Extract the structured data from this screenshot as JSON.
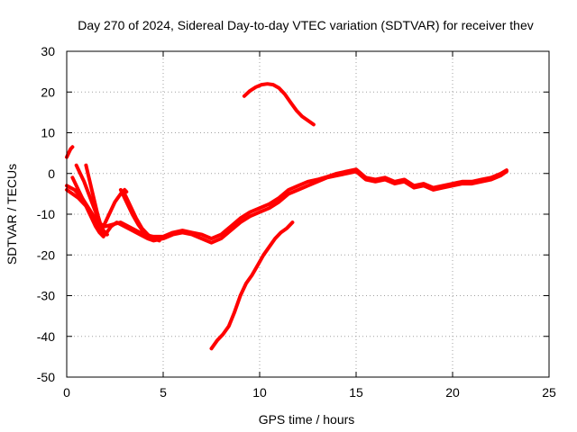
{
  "chart_data": {
    "type": "line",
    "title": "Day 270 of 2024, Sidereal Day-to-day VTEC variation (SDTVAR) for receiver thev",
    "xlabel": "GPS time / hours",
    "ylabel": "SDTVAR / TECUs",
    "xlim": [
      0,
      25
    ],
    "ylim": [
      -50,
      30
    ],
    "xticks": [
      0,
      5,
      10,
      15,
      20,
      25
    ],
    "yticks": [
      -50,
      -40,
      -30,
      -20,
      -10,
      0,
      10,
      20,
      30
    ],
    "grid": true,
    "series_color": "#ff0000",
    "series": [
      {
        "name": "track-main",
        "x": [
          0.0,
          0.3,
          0.6,
          1.0,
          1.4,
          1.7,
          2.0,
          2.3,
          2.6,
          3.0,
          3.4,
          3.8,
          4.2,
          4.5,
          5.0,
          5.5,
          6.0,
          6.5,
          7.0,
          7.5,
          8.0,
          8.5,
          9.0,
          9.5,
          10.0,
          10.5,
          11.0,
          11.5,
          12.0,
          12.5,
          13.0,
          13.5,
          14.0,
          14.5,
          15.0,
          15.5,
          16.0,
          16.5,
          17.0,
          17.5,
          18.0,
          18.5,
          19.0,
          19.5,
          20.0,
          20.5,
          21.0,
          21.5,
          22.0,
          22.5,
          22.8
        ],
        "y": [
          -4,
          -5,
          -6,
          -8,
          -11,
          -14,
          -15,
          -13,
          -12,
          -13,
          -14,
          -15,
          -16,
          -16.5,
          -16,
          -15,
          -14.5,
          -15,
          -16,
          -17,
          -16,
          -14,
          -12,
          -10.5,
          -9.5,
          -8.5,
          -7,
          -5,
          -4,
          -3,
          -2,
          -1,
          -0.5,
          0,
          0.5,
          -1.5,
          -2,
          -1.5,
          -2.5,
          -2,
          -3.5,
          -3,
          -4,
          -3.5,
          -3,
          -2.5,
          -2.5,
          -2,
          -1.5,
          -0.5,
          0.5
        ]
      },
      {
        "name": "track-main-parallel",
        "x": [
          0.0,
          0.4,
          0.8,
          1.2,
          1.6,
          2.0,
          2.4,
          2.8,
          3.2,
          3.6,
          4.0,
          4.5,
          5.0,
          5.5,
          6.0,
          6.5,
          7.0,
          7.5,
          8.0,
          8.5,
          9.0,
          9.5,
          10.0,
          10.5,
          11.0,
          11.5,
          12.0,
          12.5,
          13.0,
          13.5,
          14.0,
          14.5,
          15.0,
          15.5,
          16.0,
          16.5,
          17.0,
          17.5,
          18.0,
          18.5,
          19.0,
          19.5,
          20.0,
          20.5,
          21.0,
          21.5,
          22.0,
          22.5,
          22.8
        ],
        "y": [
          -3,
          -4,
          -6,
          -9,
          -12,
          -13,
          -12.5,
          -12,
          -13,
          -14,
          -15,
          -15.5,
          -15.5,
          -14.5,
          -14,
          -14.5,
          -15,
          -16,
          -15,
          -13,
          -11,
          -9.5,
          -8.5,
          -7.5,
          -6,
          -4,
          -3,
          -2,
          -1.5,
          -0.8,
          0,
          0.5,
          1,
          -1,
          -1.5,
          -1,
          -2,
          -1.5,
          -3,
          -2.5,
          -3.5,
          -3,
          -2.5,
          -2,
          -2,
          -1.5,
          -1,
          0,
          0.8
        ]
      },
      {
        "name": "track-early-rise",
        "x": [
          0.0,
          0.1,
          0.2,
          0.3
        ],
        "y": [
          4,
          5,
          6,
          6.5
        ]
      },
      {
        "name": "track-early-drop-a",
        "x": [
          0.3,
          0.5,
          0.7,
          0.9,
          1.1,
          1.3,
          1.5,
          1.7,
          1.9
        ],
        "y": [
          -1,
          -3,
          -5,
          -7,
          -9,
          -11,
          -13,
          -14.5,
          -15.5
        ]
      },
      {
        "name": "track-early-drop-b",
        "x": [
          0.5,
          0.7,
          0.9,
          1.1,
          1.3,
          1.5,
          1.7,
          1.9,
          2.1
        ],
        "y": [
          2,
          0,
          -2,
          -4.5,
          -7,
          -9.5,
          -12,
          -14,
          -15
        ]
      },
      {
        "name": "track-early-drop-c",
        "x": [
          1.0,
          1.15,
          1.3,
          1.45,
          1.6,
          1.75,
          1.9
        ],
        "y": [
          2,
          -1,
          -4,
          -7,
          -10,
          -12.5,
          -14
        ]
      },
      {
        "name": "track-hook",
        "x": [
          1.9,
          2.2,
          2.5,
          2.8,
          3.0,
          3.1
        ],
        "y": [
          -13,
          -10,
          -7,
          -5,
          -4,
          -4.5
        ]
      },
      {
        "name": "track-slope-a",
        "x": [
          3.0,
          3.3,
          3.6,
          3.9,
          4.2,
          4.5,
          4.8
        ],
        "y": [
          -5,
          -8,
          -11,
          -13.5,
          -15,
          -16,
          -16.5
        ]
      },
      {
        "name": "track-slope-b",
        "x": [
          2.8,
          3.1,
          3.4,
          3.7,
          4.0,
          4.3,
          4.6
        ],
        "y": [
          -4,
          -7,
          -10,
          -12.5,
          -14.5,
          -15.5,
          -16
        ]
      },
      {
        "name": "track-high-arc",
        "x": [
          9.2,
          9.5,
          9.8,
          10.1,
          10.4,
          10.7,
          11.0,
          11.3,
          11.6,
          11.9,
          12.2,
          12.5,
          12.8
        ],
        "y": [
          19,
          20.3,
          21.2,
          21.8,
          22,
          21.8,
          21,
          19.5,
          17.5,
          15.5,
          14,
          13,
          12
        ]
      },
      {
        "name": "track-low-rise",
        "x": [
          7.5,
          7.8,
          8.1,
          8.4,
          8.7,
          9.0,
          9.3,
          9.6,
          9.9,
          10.2,
          10.5,
          10.8,
          11.1,
          11.4,
          11.7
        ],
        "y": [
          -43,
          -41,
          -39.5,
          -37.5,
          -34,
          -30,
          -27,
          -25,
          -22.5,
          -20,
          -18,
          -16,
          -14.5,
          -13.5,
          -12
        ]
      }
    ]
  }
}
